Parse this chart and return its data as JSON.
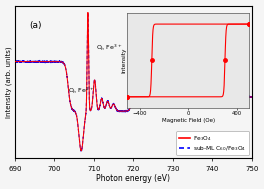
{
  "title": "(a)",
  "xlabel": "Photon energy (eV)",
  "ylabel": "Intensity (arb. units)",
  "xlim": [
    690,
    750
  ],
  "background_color": "#f5f5f5",
  "line_color_solid": "#ff0000",
  "line_color_dashed": "#0000ff",
  "label_solid": "Fe$_3$O$_4$",
  "label_dashed": "sub-ML C$_{60}$/Fe$_3$O$_4$",
  "inset": {
    "xlabel": "Magnetic Field (Oe)",
    "ylabel": "Intensity",
    "xlim": [
      -500,
      500
    ],
    "ylim": [
      -1.3,
      1.3
    ],
    "xticks": [
      -400,
      0,
      400
    ]
  }
}
